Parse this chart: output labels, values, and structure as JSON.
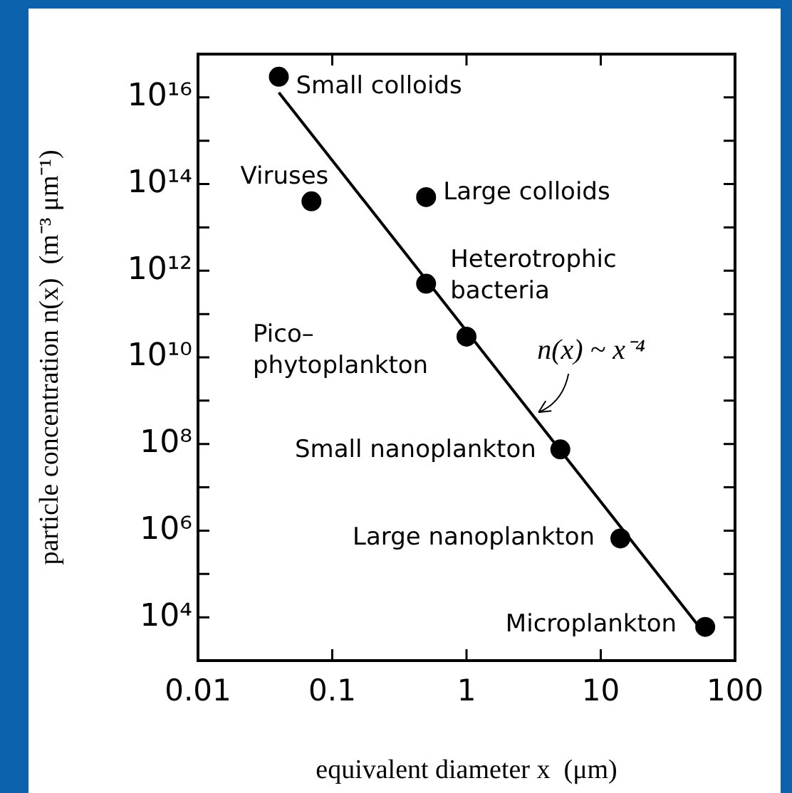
{
  "chart_data": {
    "type": "scatter",
    "xlabel": "equivalent diameter x  (μm)",
    "ylabel": "particle concentration n(x)  (m⁻³ μm⁻¹)",
    "log": "xy",
    "xlim": [
      0.01,
      100
    ],
    "ylim": [
      1000,
      1e+17
    ],
    "xticks": [
      0.01,
      0.1,
      1,
      10,
      100
    ],
    "yticks": [
      {
        "value": 10000.0,
        "label": "10⁴"
      },
      {
        "value": 100000.0,
        "label": null
      },
      {
        "value": 1000000.0,
        "label": "10⁶"
      },
      {
        "value": 10000000.0,
        "label": null
      },
      {
        "value": 100000000.0,
        "label": "10⁸"
      },
      {
        "value": 1000000000.0,
        "label": null
      },
      {
        "value": 10000000000.0,
        "label": "10¹⁰"
      },
      {
        "value": 100000000000.0,
        "label": null
      },
      {
        "value": 1000000000000.0,
        "label": "10¹²"
      },
      {
        "value": 10000000000000.0,
        "label": null
      },
      {
        "value": 100000000000000.0,
        "label": "10¹⁴"
      },
      {
        "value": 1000000000000000.0,
        "label": null
      },
      {
        "value": 1e+16,
        "label": "10¹⁶"
      }
    ],
    "line_style": "solid",
    "series": [
      {
        "marker": "circle",
        "color": "#000000",
        "x": [
          0.04,
          0.07,
          0.5,
          0.5,
          1,
          5,
          14,
          60
        ],
        "values": [
          3e+16,
          40000000000000.0,
          50000000000000.0,
          500000000000.0,
          30000000000.0,
          75000000.0,
          660000.0,
          6000.0
        ]
      },
      {
        "type": "line",
        "marker": "none",
        "color": "#000000",
        "x": [
          0.04,
          60
        ],
        "values": [
          1.3e+16,
          4000.0
        ]
      }
    ],
    "annotations": [
      {
        "text": "Small colloids",
        "x": 0.04,
        "y": 3e+16
      },
      {
        "text": "Viruses",
        "x": 0.07,
        "y": 40000000000000.0
      },
      {
        "text": "Large colloids",
        "x": 0.5,
        "y": 50000000000000.0
      },
      {
        "text": "Heterotrophic bacteria",
        "x": 0.5,
        "y": 500000000000.0
      },
      {
        "text": "Pico–phytoplankton",
        "x": 1,
        "y": 30000000000.0
      },
      {
        "text": "Small nanoplankton",
        "x": 5,
        "y": 75000000.0
      },
      {
        "text": "Large nanoplankton",
        "x": 14,
        "y": 660000.0
      },
      {
        "text": "Microplankton",
        "x": 60,
        "y": 6000.0
      },
      {
        "text": "n(x) ~ x⁻⁴",
        "x": 3.2,
        "y": 500000000.0
      }
    ]
  }
}
